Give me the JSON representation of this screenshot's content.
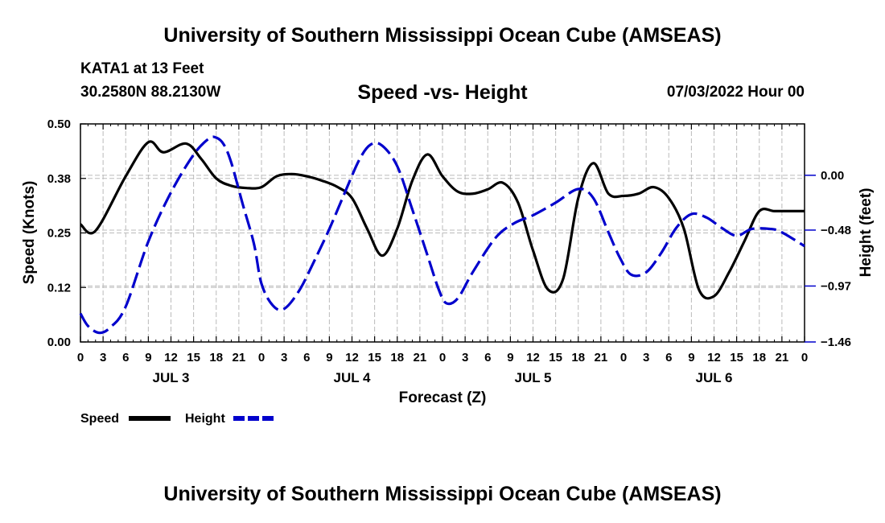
{
  "header": {
    "title": "University of Southern Mississippi Ocean Cube (AMSEAS)",
    "station": "KATA1 at 13 Feet",
    "coords": "30.2580N  88.2130W",
    "run": "07/03/2022 Hour 00"
  },
  "footer": {
    "title": "University of Southern Mississippi Ocean Cube (AMSEAS)"
  },
  "chart_data": {
    "type": "line",
    "title": "Speed -vs- Height",
    "xlabel": "Forecast (Z)",
    "ylabel": "Speed (Knots)",
    "y2label": "Height (feet)",
    "xlim": [
      0,
      96
    ],
    "ylim": [
      0.0,
      0.5
    ],
    "y2lim": [
      -1.46,
      0.45
    ],
    "yticks": [
      "0.00",
      "0.12",
      "0.25",
      "0.38",
      "0.50"
    ],
    "y2ticks": [
      "-1.46",
      "-0.97",
      "-0.48",
      "0.00"
    ],
    "xtick_labels": [
      "0",
      "3",
      "6",
      "9",
      "12",
      "15",
      "18",
      "21",
      "0",
      "3",
      "6",
      "9",
      "12",
      "15",
      "18",
      "21",
      "0",
      "3",
      "6",
      "9",
      "12",
      "15",
      "18",
      "21",
      "0",
      "3",
      "6",
      "9",
      "12",
      "15",
      "18",
      "21",
      "0"
    ],
    "day_labels": [
      "JUL 3",
      "JUL 4",
      "JUL 5",
      "JUL 6"
    ],
    "grid": true,
    "legend": "bottom-left",
    "series": [
      {
        "name": "Speed",
        "color": "#000000",
        "style": "solid",
        "axis": "left",
        "x": [
          0,
          2,
          6,
          9,
          11,
          14,
          16,
          18,
          20,
          22,
          24,
          26,
          28,
          30,
          32,
          34,
          36,
          38,
          40,
          42,
          44,
          46,
          48,
          50,
          52,
          54,
          56,
          58,
          60,
          62,
          64,
          66,
          68,
          70,
          72,
          74,
          76,
          78,
          80,
          82,
          84,
          86,
          88,
          90,
          92,
          94,
          96
        ],
        "values": [
          0.27,
          0.255,
          0.38,
          0.458,
          0.435,
          0.455,
          0.42,
          0.375,
          0.358,
          0.353,
          0.355,
          0.38,
          0.385,
          0.38,
          0.37,
          0.356,
          0.33,
          0.26,
          0.198,
          0.26,
          0.37,
          0.43,
          0.38,
          0.345,
          0.34,
          0.35,
          0.365,
          0.32,
          0.21,
          0.12,
          0.145,
          0.33,
          0.41,
          0.34,
          0.335,
          0.34,
          0.355,
          0.33,
          0.26,
          0.12,
          0.105,
          0.16,
          0.23,
          0.3,
          0.3,
          0.3,
          0.3
        ]
      },
      {
        "name": "Height",
        "color": "#0000cc",
        "style": "dashed",
        "axis": "right",
        "x": [
          0,
          1,
          2.5,
          4,
          6,
          9,
          12,
          15,
          17,
          18,
          19,
          20,
          21.5,
          23,
          24,
          25.5,
          27,
          29,
          31,
          33,
          35,
          37,
          38.5,
          40,
          42,
          44,
          46,
          47.5,
          48.5,
          50,
          52,
          55,
          57.5,
          60,
          63,
          66,
          68,
          70,
          71.5,
          73,
          75,
          77,
          79,
          81,
          83,
          85,
          87,
          89,
          91.5,
          93,
          96
        ],
        "values": [
          -1.21,
          -1.32,
          -1.38,
          -1.33,
          -1.15,
          -0.58,
          -0.15,
          0.18,
          0.32,
          0.33,
          0.27,
          0.11,
          -0.25,
          -0.6,
          -0.95,
          -1.14,
          -1.17,
          -1.01,
          -0.75,
          -0.47,
          -0.16,
          0.14,
          0.27,
          0.26,
          0.08,
          -0.3,
          -0.7,
          -1.0,
          -1.12,
          -1.08,
          -0.85,
          -0.55,
          -0.42,
          -0.35,
          -0.24,
          -0.12,
          -0.2,
          -0.5,
          -0.72,
          -0.87,
          -0.85,
          -0.68,
          -0.46,
          -0.34,
          -0.37,
          -0.46,
          -0.53,
          -0.47,
          -0.47,
          -0.5,
          -0.62
        ]
      }
    ]
  }
}
